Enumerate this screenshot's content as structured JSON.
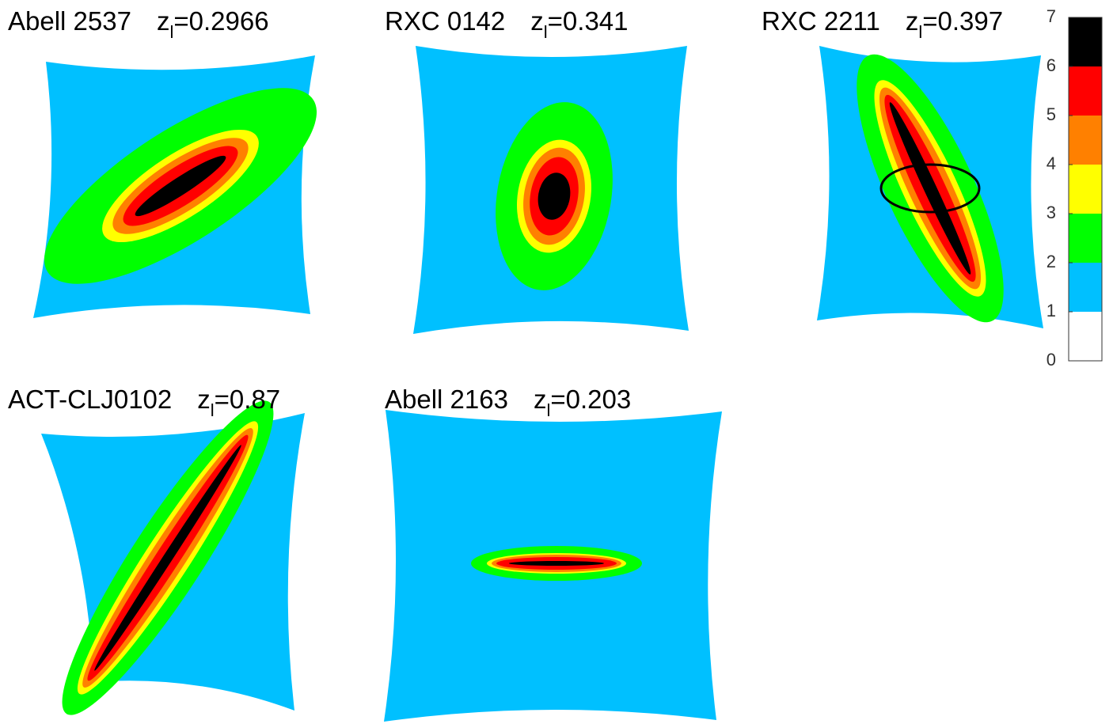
{
  "symbol": "z",
  "subscript": "l",
  "panels": [
    {
      "name": "Abell 2537",
      "redshift": "=0.2966"
    },
    {
      "name": "RXC 0142",
      "redshift": "=0.341"
    },
    {
      "name": "RXC 2211",
      "redshift": "=0.397"
    },
    {
      "name": "ACT-CLJ0102",
      "redshift": "=0.87"
    },
    {
      "name": "Abell 2163",
      "redshift": "=0.203"
    }
  ],
  "colorbar": {
    "ticks": [
      0,
      1,
      2,
      3,
      4,
      5,
      6,
      7
    ],
    "colors": [
      "#ffffff",
      "#00c0ff",
      "#00ff00",
      "#ffff00",
      "#ff8000",
      "#ff0000",
      "#000000"
    ]
  }
}
